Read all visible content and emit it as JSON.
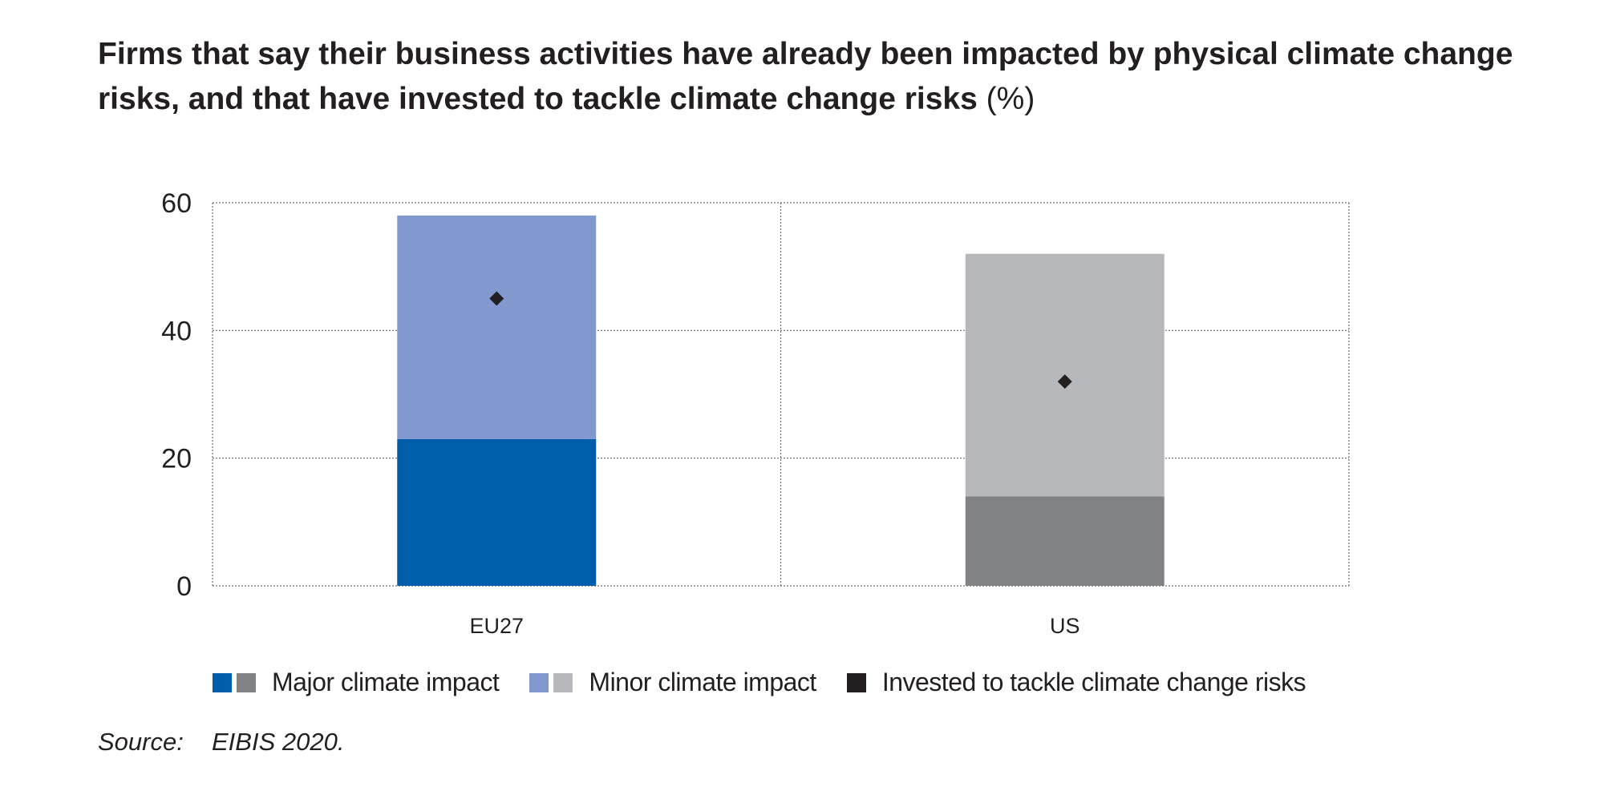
{
  "title": {
    "main": "Firms that say their business activities have already been impacted by physical climate change risks, and that have invested to tackle climate change risks",
    "unit": "(%)"
  },
  "chart_data": {
    "type": "bar",
    "stacked": true,
    "categories": [
      "EU27",
      "US"
    ],
    "series": [
      {
        "name": "Major climate impact",
        "values": [
          23,
          14
        ],
        "colors": [
          "#005daa",
          "#808285"
        ]
      },
      {
        "name": "Minor climate impact",
        "values": [
          35,
          38
        ],
        "colors": [
          "#8299d0",
          "#b7b8bb"
        ]
      },
      {
        "name": "Invested to tackle climate change risks",
        "type": "marker",
        "values": [
          45,
          32
        ],
        "color": "#231f20"
      }
    ],
    "ylim": [
      0,
      60
    ],
    "yticks": [
      0,
      20,
      40,
      60
    ],
    "grid": true,
    "legend_position": "bottom",
    "xlabel": "",
    "ylabel": ""
  },
  "legend": [
    {
      "label": "Major climate impact",
      "colors": [
        "#005daa",
        "#808285"
      ]
    },
    {
      "label": "Minor climate impact",
      "colors": [
        "#8299d0",
        "#b7b8bb"
      ]
    },
    {
      "label": "Invested to tackle climate change risks",
      "colors": [
        "#231f20"
      ]
    }
  ],
  "source": {
    "label": "Source:",
    "text": "EIBIS 2020."
  }
}
